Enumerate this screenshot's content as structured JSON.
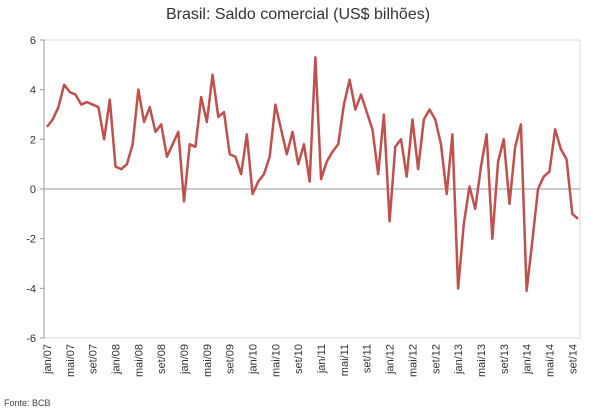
{
  "chart_data": {
    "type": "line",
    "title": "Brasil: Saldo comercial (US$ bilhões)",
    "xlabel": "",
    "ylabel": "",
    "ylim": [
      -6,
      6
    ],
    "yticks": [
      6,
      4,
      2,
      0,
      -2,
      -4,
      -6
    ],
    "grid": false,
    "legend": "none",
    "line_color": "#C0504D",
    "x_tick_labels": [
      "jan/07",
      "mai/07",
      "set/07",
      "jan/08",
      "mai/08",
      "set/08",
      "jan/09",
      "mai/09",
      "set/09",
      "jan/10",
      "mai/10",
      "set/10",
      "jan/11",
      "mai/11",
      "set/11",
      "jan/12",
      "mai/12",
      "set/12",
      "jan/13",
      "mai/13",
      "set/13",
      "jan/14",
      "mai/14",
      "set/14"
    ],
    "series": [
      {
        "values": [
          2.5,
          2.8,
          3.3,
          4.2,
          3.9,
          3.8,
          3.4,
          3.5,
          3.4,
          3.3,
          2.0,
          3.6,
          0.9,
          0.8,
          1.0,
          1.8,
          4.0,
          2.7,
          3.3,
          2.3,
          2.6,
          1.3,
          1.8,
          2.3,
          -0.5,
          1.8,
          1.7,
          3.7,
          2.7,
          4.6,
          2.9,
          3.1,
          1.4,
          1.3,
          0.6,
          2.2,
          -0.2,
          0.3,
          0.6,
          1.3,
          3.4,
          2.4,
          1.4,
          2.3,
          1.0,
          1.8,
          0.3,
          5.3,
          0.4,
          1.1,
          1.5,
          1.8,
          3.4,
          4.4,
          3.2,
          3.8,
          3.1,
          2.4,
          0.6,
          3.0,
          -1.3,
          1.7,
          2.0,
          0.5,
          2.8,
          0.8,
          2.8,
          3.2,
          2.8,
          1.8,
          -0.2,
          2.2,
          -4.0,
          -1.4,
          0.1,
          -0.8,
          0.9,
          2.2,
          -2.0,
          1.1,
          2.0,
          -0.6,
          1.7,
          2.6,
          -4.1,
          -2.1,
          0.0,
          0.5,
          0.7,
          2.4,
          1.6,
          1.2,
          -1.0,
          -1.2
        ]
      }
    ],
    "source": "Fonte: BCB"
  }
}
